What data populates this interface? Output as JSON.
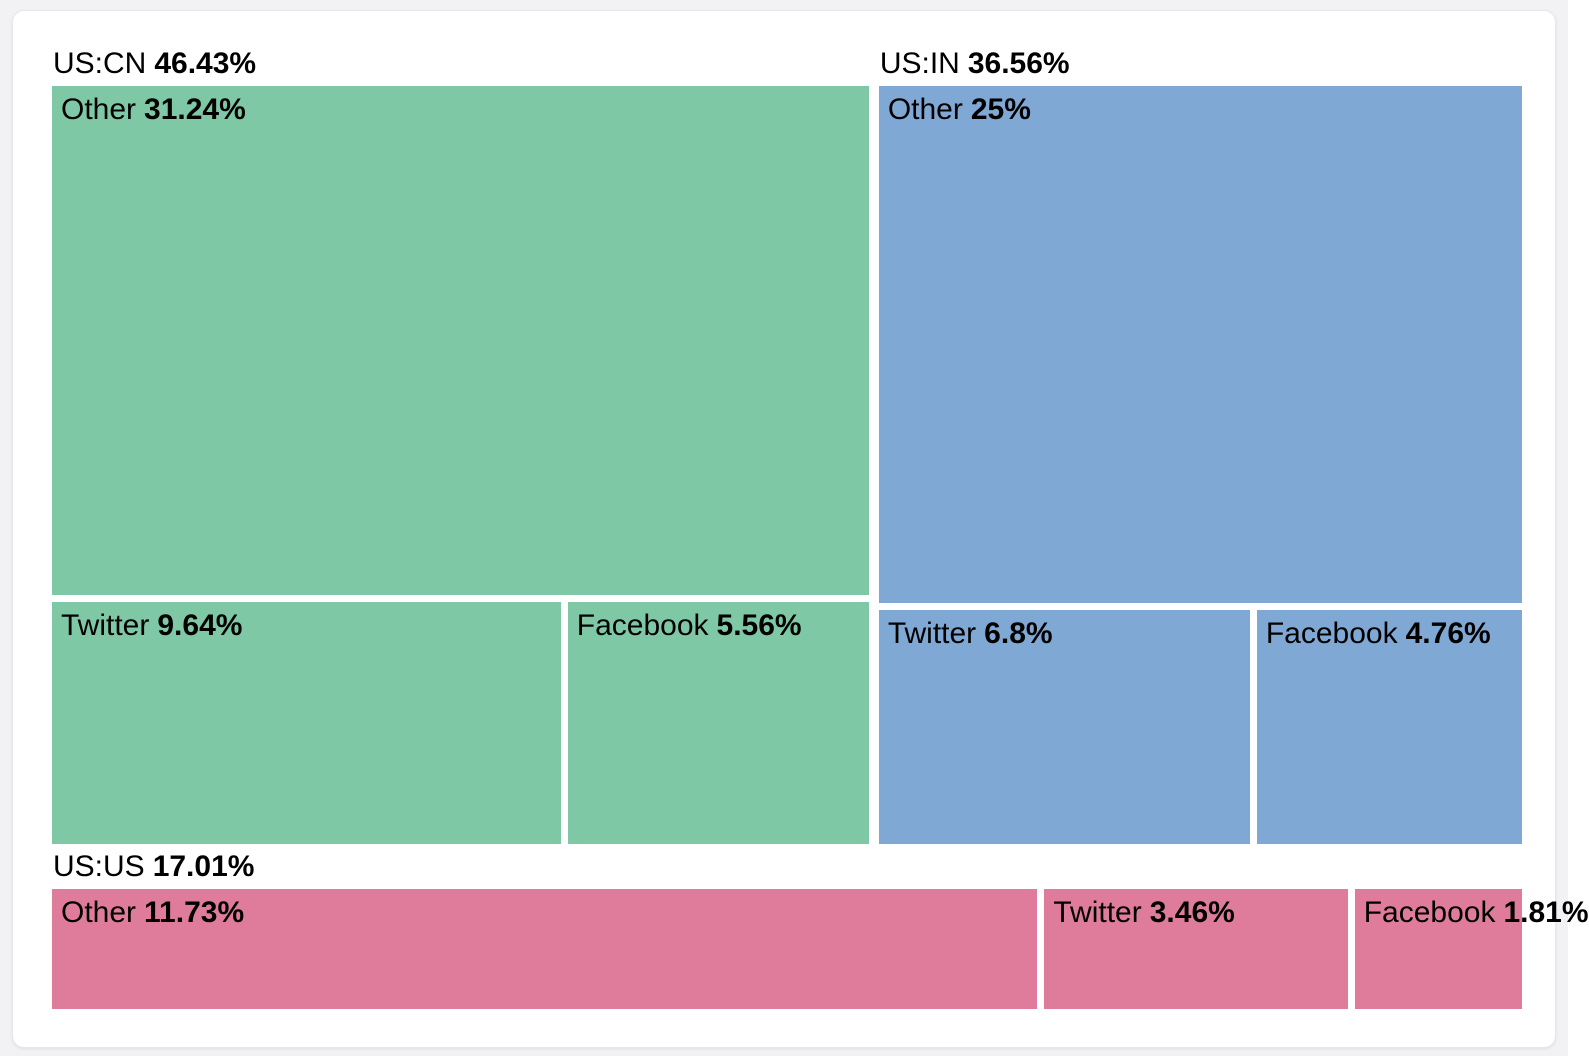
{
  "chart_data": {
    "type": "treemap",
    "title": "",
    "legend_position": "none",
    "value_format": "percent",
    "colors": {
      "us_cn": "#7ec8a6",
      "us_in": "#7fa8d5",
      "us_us": "#e07c9b",
      "text": "#000000",
      "gap": "#ffffff",
      "card_background": "#ffffff",
      "page_background": "#f2f2f4"
    },
    "groups": [
      {
        "id": "us-cn",
        "label": "US:CN",
        "value": 46.43,
        "value_label": "46.43%",
        "color": "#7ec8a6",
        "row": 0,
        "layout": "stacked",
        "children": [
          {
            "id": "other",
            "name": "Other",
            "value": 31.24,
            "value_label": "31.24%"
          },
          {
            "id": "twitter",
            "name": "Twitter",
            "value": 9.64,
            "value_label": "9.64%"
          },
          {
            "id": "facebook",
            "name": "Facebook",
            "value": 5.56,
            "value_label": "5.56%"
          }
        ]
      },
      {
        "id": "us-in",
        "label": "US:IN",
        "value": 36.56,
        "value_label": "36.56%",
        "color": "#7fa8d5",
        "row": 0,
        "layout": "stacked",
        "children": [
          {
            "id": "other",
            "name": "Other",
            "value": 25,
            "value_label": "25%"
          },
          {
            "id": "twitter",
            "name": "Twitter",
            "value": 6.8,
            "value_label": "6.8%"
          },
          {
            "id": "facebook",
            "name": "Facebook",
            "value": 4.76,
            "value_label": "4.76%"
          }
        ]
      },
      {
        "id": "us-us",
        "label": "US:US",
        "value": 17.01,
        "value_label": "17.01%",
        "color": "#e07c9b",
        "row": 1,
        "layout": "row",
        "children": [
          {
            "id": "other",
            "name": "Other",
            "value": 11.73,
            "value_label": "11.73%"
          },
          {
            "id": "twitter",
            "name": "Twitter",
            "value": 3.46,
            "value_label": "3.46%"
          },
          {
            "id": "facebook",
            "name": "Facebook",
            "value": 1.81,
            "value_label": "1.81%"
          }
        ]
      }
    ]
  }
}
